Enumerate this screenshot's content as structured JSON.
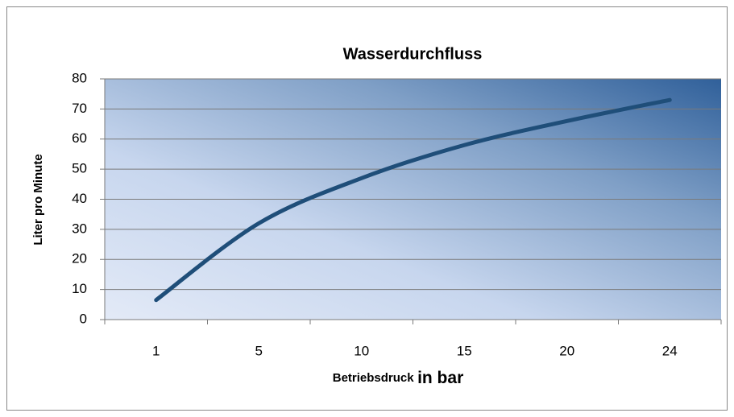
{
  "chart_data": {
    "type": "line",
    "title": "Wasserdurchfluss",
    "x_label": [
      "Betriebsdruck",
      "in bar"
    ],
    "y_label": "Liter pro Minute",
    "categories": [
      "1",
      "5",
      "10",
      "15",
      "20",
      "24"
    ],
    "values": [
      6.5,
      32,
      47,
      58,
      66,
      73
    ],
    "color": "#1f4e79",
    "ylim": [
      0,
      80
    ],
    "yticks": [
      0,
      10,
      20,
      30,
      40,
      50,
      60,
      70,
      80
    ],
    "grid": true
  }
}
